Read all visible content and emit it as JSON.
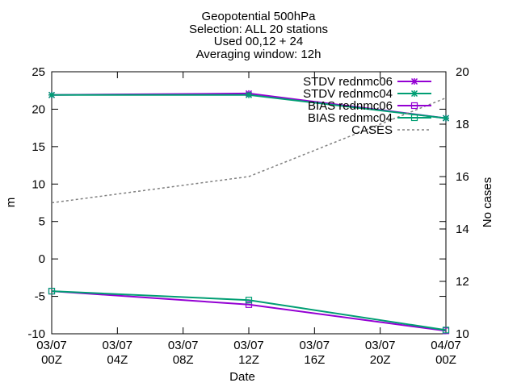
{
  "chart_data": {
    "type": "line",
    "title_lines": [
      "Geopotential 500hPa",
      "Selection: ALL      20 stations",
      "Used 00,12 + 24",
      "Averaging window: 12h"
    ],
    "xlabel": "Date",
    "ylabel": "m",
    "y2label": "No cases",
    "x_ticks": [
      {
        "value": 0,
        "line1": "03/07",
        "line2": "00Z"
      },
      {
        "value": 4,
        "line1": "03/07",
        "line2": "04Z"
      },
      {
        "value": 8,
        "line1": "03/07",
        "line2": "08Z"
      },
      {
        "value": 12,
        "line1": "03/07",
        "line2": "12Z"
      },
      {
        "value": 16,
        "line1": "03/07",
        "line2": "16Z"
      },
      {
        "value": 20,
        "line1": "03/07",
        "line2": "20Z"
      },
      {
        "value": 24,
        "line1": "04/07",
        "line2": "00Z"
      }
    ],
    "xlim": [
      0,
      24
    ],
    "ylim": [
      -10,
      25
    ],
    "y_ticks": [
      -10,
      -5,
      0,
      5,
      10,
      15,
      20,
      25
    ],
    "y2lim": [
      10,
      20
    ],
    "y2_ticks": [
      10,
      12,
      14,
      16,
      18,
      20
    ],
    "grid": false,
    "legend_position": "top-right",
    "series": [
      {
        "name": "STDV rednmc06",
        "axis": "y1",
        "color": "#9400d3",
        "marker": "star",
        "x": [
          0,
          12,
          24
        ],
        "y": [
          21.9,
          22.1,
          18.8
        ]
      },
      {
        "name": "STDV rednmc04",
        "axis": "y1",
        "color": "#009e73",
        "marker": "star",
        "x": [
          0,
          12,
          24
        ],
        "y": [
          21.9,
          21.9,
          18.8
        ]
      },
      {
        "name": "BIAS rednmc06",
        "axis": "y1",
        "color": "#9400d3",
        "marker": "square",
        "x": [
          0,
          12,
          24
        ],
        "y": [
          -4.3,
          -6.1,
          -9.6
        ]
      },
      {
        "name": "BIAS rednmc04",
        "axis": "y1",
        "color": "#009e73",
        "marker": "square",
        "x": [
          0,
          12,
          24
        ],
        "y": [
          -4.3,
          -5.5,
          -9.5
        ]
      },
      {
        "name": "CASES",
        "axis": "y2",
        "color": "#808080",
        "marker": "none",
        "dashed": true,
        "x": [
          0,
          12,
          24
        ],
        "y": [
          15,
          16,
          19
        ]
      }
    ]
  }
}
